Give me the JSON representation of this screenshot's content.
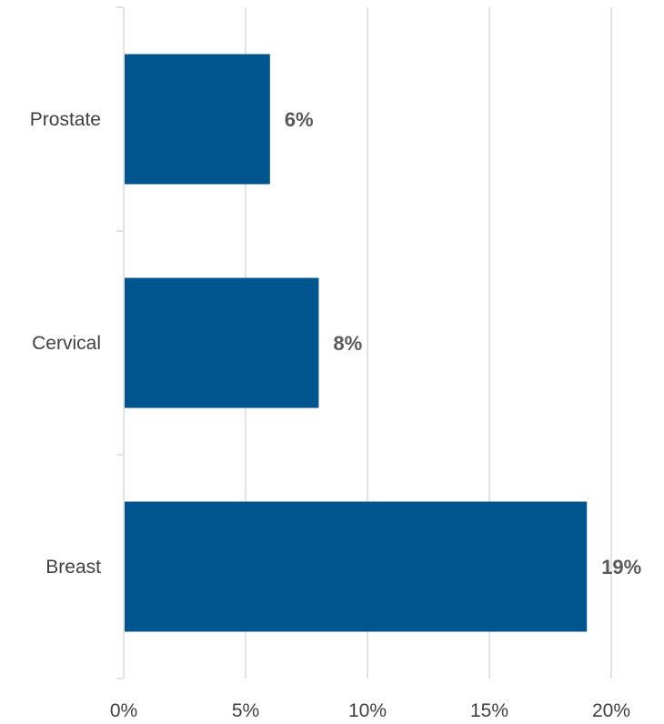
{
  "chart_data": {
    "type": "bar",
    "orientation": "horizontal",
    "categories": [
      "Prostate",
      "Cervical",
      "Breast"
    ],
    "values": [
      6,
      8,
      19
    ],
    "data_labels": [
      "6%",
      "8%",
      "19%"
    ],
    "xlim": [
      0,
      20
    ],
    "x_ticks": [
      0,
      5,
      10,
      15,
      20
    ],
    "x_tick_labels": [
      "0%",
      "5%",
      "10%",
      "15%",
      "20%"
    ],
    "grid": "vertical",
    "legend": "none",
    "bar_color": "#00558f",
    "gridline_color": "#d9d9d9",
    "title": "",
    "xlabel": "",
    "ylabel": ""
  }
}
